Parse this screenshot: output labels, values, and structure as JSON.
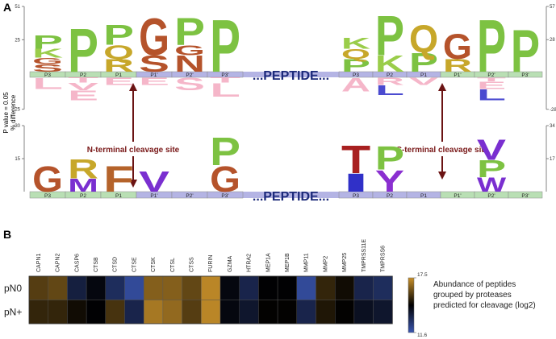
{
  "chart_data": [
    {
      "type": "logo",
      "panel_label": "A",
      "ylabel": [
        "P value = 0.05",
        "% difference"
      ],
      "categories": [
        "P3",
        "P2",
        "P1",
        "P1'",
        "P2'",
        "P3'",
        "P3",
        "P2",
        "P1",
        "P1'",
        "P2'",
        "P3'"
      ],
      "bar_colors": [
        "#b9dfb4",
        "#b9dfb4",
        "#b9dfb4",
        "#b4b4e4",
        "#b4b4e4",
        "#b4b4e4",
        "#b4b4e4",
        "#b4b4e4",
        "#b4b4e4",
        "#b9dfb4",
        "#b9dfb4",
        "#b9dfb4"
      ],
      "peptide_label": "...PEPTIDE...",
      "annotations": [
        "N-terminal cleavage site",
        "C-terminal cleavage site"
      ],
      "ylim": [
        -25,
        51
      ],
      "yticks": [
        51,
        25,
        {
          "value": -25,
          "label": "25"
        }
      ],
      "y2lim": [
        -28,
        57
      ],
      "y2ticks": [
        57,
        28,
        -28
      ],
      "columns": [
        [
          {
            "letter": "P",
            "value": 11,
            "color": "#7dc242"
          },
          {
            "letter": "K",
            "value": 7,
            "color": "#9acd4a"
          },
          {
            "letter": "G",
            "value": 5,
            "color": "#b5532b"
          },
          {
            "letter": "S",
            "value": 6,
            "color": "#b5532b"
          },
          {
            "letter": "L",
            "value": -9,
            "color": "#f3a9c0"
          }
        ],
        [
          {
            "letter": "P",
            "value": 35,
            "color": "#7dc242"
          },
          {
            "letter": "T",
            "value": -4,
            "color": "#f3a9c0"
          },
          {
            "letter": "V",
            "value": -6,
            "color": "#f3a9c0"
          },
          {
            "letter": "E",
            "value": -8,
            "color": "#f3a9c0"
          }
        ],
        [
          {
            "letter": "P",
            "value": 16,
            "color": "#7dc242"
          },
          {
            "letter": "Q",
            "value": 11,
            "color": "#c7a72a"
          },
          {
            "letter": "R",
            "value": 10,
            "color": "#c7a72a"
          },
          {
            "letter": "E",
            "value": -6,
            "color": "#f3a9c0"
          }
        ],
        [
          {
            "letter": "G",
            "value": 30,
            "color": "#b5532b"
          },
          {
            "letter": "S",
            "value": 13,
            "color": "#b5532b"
          },
          {
            "letter": "E",
            "value": -6,
            "color": "#f3a9c0"
          }
        ],
        [
          {
            "letter": "P",
            "value": 22,
            "color": "#7dc242"
          },
          {
            "letter": "G",
            "value": 8,
            "color": "#b5532b"
          },
          {
            "letter": "N",
            "value": 13,
            "color": "#b5532b"
          },
          {
            "letter": "S",
            "value": -10,
            "color": "#f3a9c0"
          }
        ],
        [
          {
            "letter": "P",
            "value": 42,
            "color": "#7dc242"
          },
          {
            "letter": "T",
            "value": -4,
            "color": "#f3a9c0"
          },
          {
            "letter": "L",
            "value": -11,
            "color": "#f3a9c0"
          }
        ],
        [
          {
            "letter": "K",
            "value": 9,
            "color": "#9acd4a"
          },
          {
            "letter": "Q",
            "value": 8,
            "color": "#c7a72a"
          },
          {
            "letter": "P",
            "value": 10,
            "color": "#7dc242"
          },
          {
            "letter": "A",
            "value": -11,
            "color": "#f3a9c0"
          }
        ],
        [
          {
            "letter": "P",
            "value": 32,
            "color": "#7dc242"
          },
          {
            "letter": "K",
            "value": 13,
            "color": "#9acd4a"
          },
          {
            "letter": "R",
            "value": -6,
            "color": "#f3a9c0"
          },
          {
            "letter": "L",
            "value": -8,
            "color": "#2b2bc8"
          }
        ],
        [
          {
            "letter": "Q",
            "value": 22,
            "color": "#c7a72a"
          },
          {
            "letter": "P",
            "value": 15,
            "color": "#7dc242"
          },
          {
            "letter": "V",
            "value": -6,
            "color": "#f3a9c0"
          }
        ],
        [
          {
            "letter": "G",
            "value": 20,
            "color": "#b5532b"
          },
          {
            "letter": "R",
            "value": 10,
            "color": "#c7a72a"
          }
        ],
        [
          {
            "letter": "P",
            "value": 42,
            "color": "#7dc242"
          },
          {
            "letter": "T",
            "value": -3,
            "color": "#f3a9c0"
          },
          {
            "letter": "E",
            "value": -6,
            "color": "#f3a9c0"
          },
          {
            "letter": "L",
            "value": -9,
            "color": "#2b2bc8"
          }
        ],
        [
          {
            "letter": "P",
            "value": 34,
            "color": "#7dc242"
          }
        ]
      ]
    },
    {
      "type": "logo",
      "categories": [
        "P3",
        "P2",
        "P1",
        "P1'",
        "P2'",
        "P3'",
        "P3",
        "P2",
        "P1",
        "P1'",
        "P2'",
        "P3'"
      ],
      "bar_colors": [
        "#b9dfb4",
        "#b9dfb4",
        "#b9dfb4",
        "#b4b4e4",
        "#b4b4e4",
        "#b4b4e4",
        "#b4b4e4",
        "#b4b4e4",
        "#b4b4e4",
        "#b9dfb4",
        "#b9dfb4",
        "#b9dfb4"
      ],
      "peptide_label": "...PEPTIDE...",
      "ylim": [
        0,
        30
      ],
      "yticks": [
        30,
        15
      ],
      "y2lim": [
        0,
        34
      ],
      "y2ticks": [
        34,
        17
      ],
      "columns": [
        [
          {
            "letter": "G",
            "value": 12,
            "color": "#b5532b"
          }
        ],
        [
          {
            "letter": "R",
            "value": 9,
            "color": "#c7a72a"
          },
          {
            "letter": "M",
            "value": 6,
            "color": "#7a2fd0"
          }
        ],
        [
          {
            "letter": "F",
            "value": 12,
            "color": "#b5632b"
          }
        ],
        [
          {
            "letter": "V",
            "value": 9.5,
            "color": "#7a2fd0"
          }
        ],
        [],
        [
          {
            "letter": "P",
            "value": 13,
            "color": "#7dc242"
          },
          {
            "letter": "G",
            "value": 12,
            "color": "#b5532b"
          }
        ],
        [
          {
            "letter": "T",
            "value": 13,
            "color": "#a82020"
          },
          {
            "letter": "I",
            "value": 8.5,
            "color": "#3030c8"
          }
        ],
        [
          {
            "letter": "P",
            "value": 11,
            "color": "#7dc242"
          },
          {
            "letter": "Y",
            "value": 10,
            "color": "#8a2fd0"
          }
        ],
        [],
        [],
        [
          {
            "letter": "V",
            "value": 9.5,
            "color": "#7a2fd0"
          },
          {
            "letter": "P",
            "value": 8,
            "color": "#7dc242"
          },
          {
            "letter": "W",
            "value": 6.5,
            "color": "#7a2fd0"
          }
        ],
        []
      ]
    },
    {
      "type": "heatmap",
      "panel_label": "B",
      "columns": [
        "CAPN1",
        "CAPN2",
        "CASP6",
        "CTSB",
        "CTSD",
        "CTSE",
        "CTSK",
        "CTSL",
        "CTSS",
        "FURIN",
        "GZMA",
        "HTRA2",
        "MEP1A",
        "MEP1B",
        "MMP11",
        "MMP2",
        "MMP25",
        "TMPRSS11E",
        "TMPRSS6"
      ],
      "rows": [
        "pN0",
        "pN+"
      ],
      "values": [
        [
          15.8,
          16.0,
          13.5,
          14.3,
          13.0,
          12.0,
          16.5,
          16.5,
          16.0,
          17.3,
          14.3,
          13.3,
          14.5,
          14.5,
          12.0,
          15.3,
          14.8,
          13.3,
          13.0
        ],
        [
          15.3,
          15.3,
          14.8,
          14.5,
          15.6,
          13.3,
          17.0,
          16.7,
          15.8,
          17.3,
          14.3,
          13.8,
          14.6,
          14.6,
          13.3,
          15.0,
          14.6,
          14.0,
          13.8
        ]
      ],
      "zlim": [
        11.6,
        17.5
      ],
      "zticks": [
        11.6,
        17.5
      ],
      "colormap": [
        "#3a56b0",
        "#000000",
        "#c8902a"
      ],
      "colorbar_label": "Abundance of peptides grouped by proteases predicted for cleavage (log2)"
    }
  ]
}
